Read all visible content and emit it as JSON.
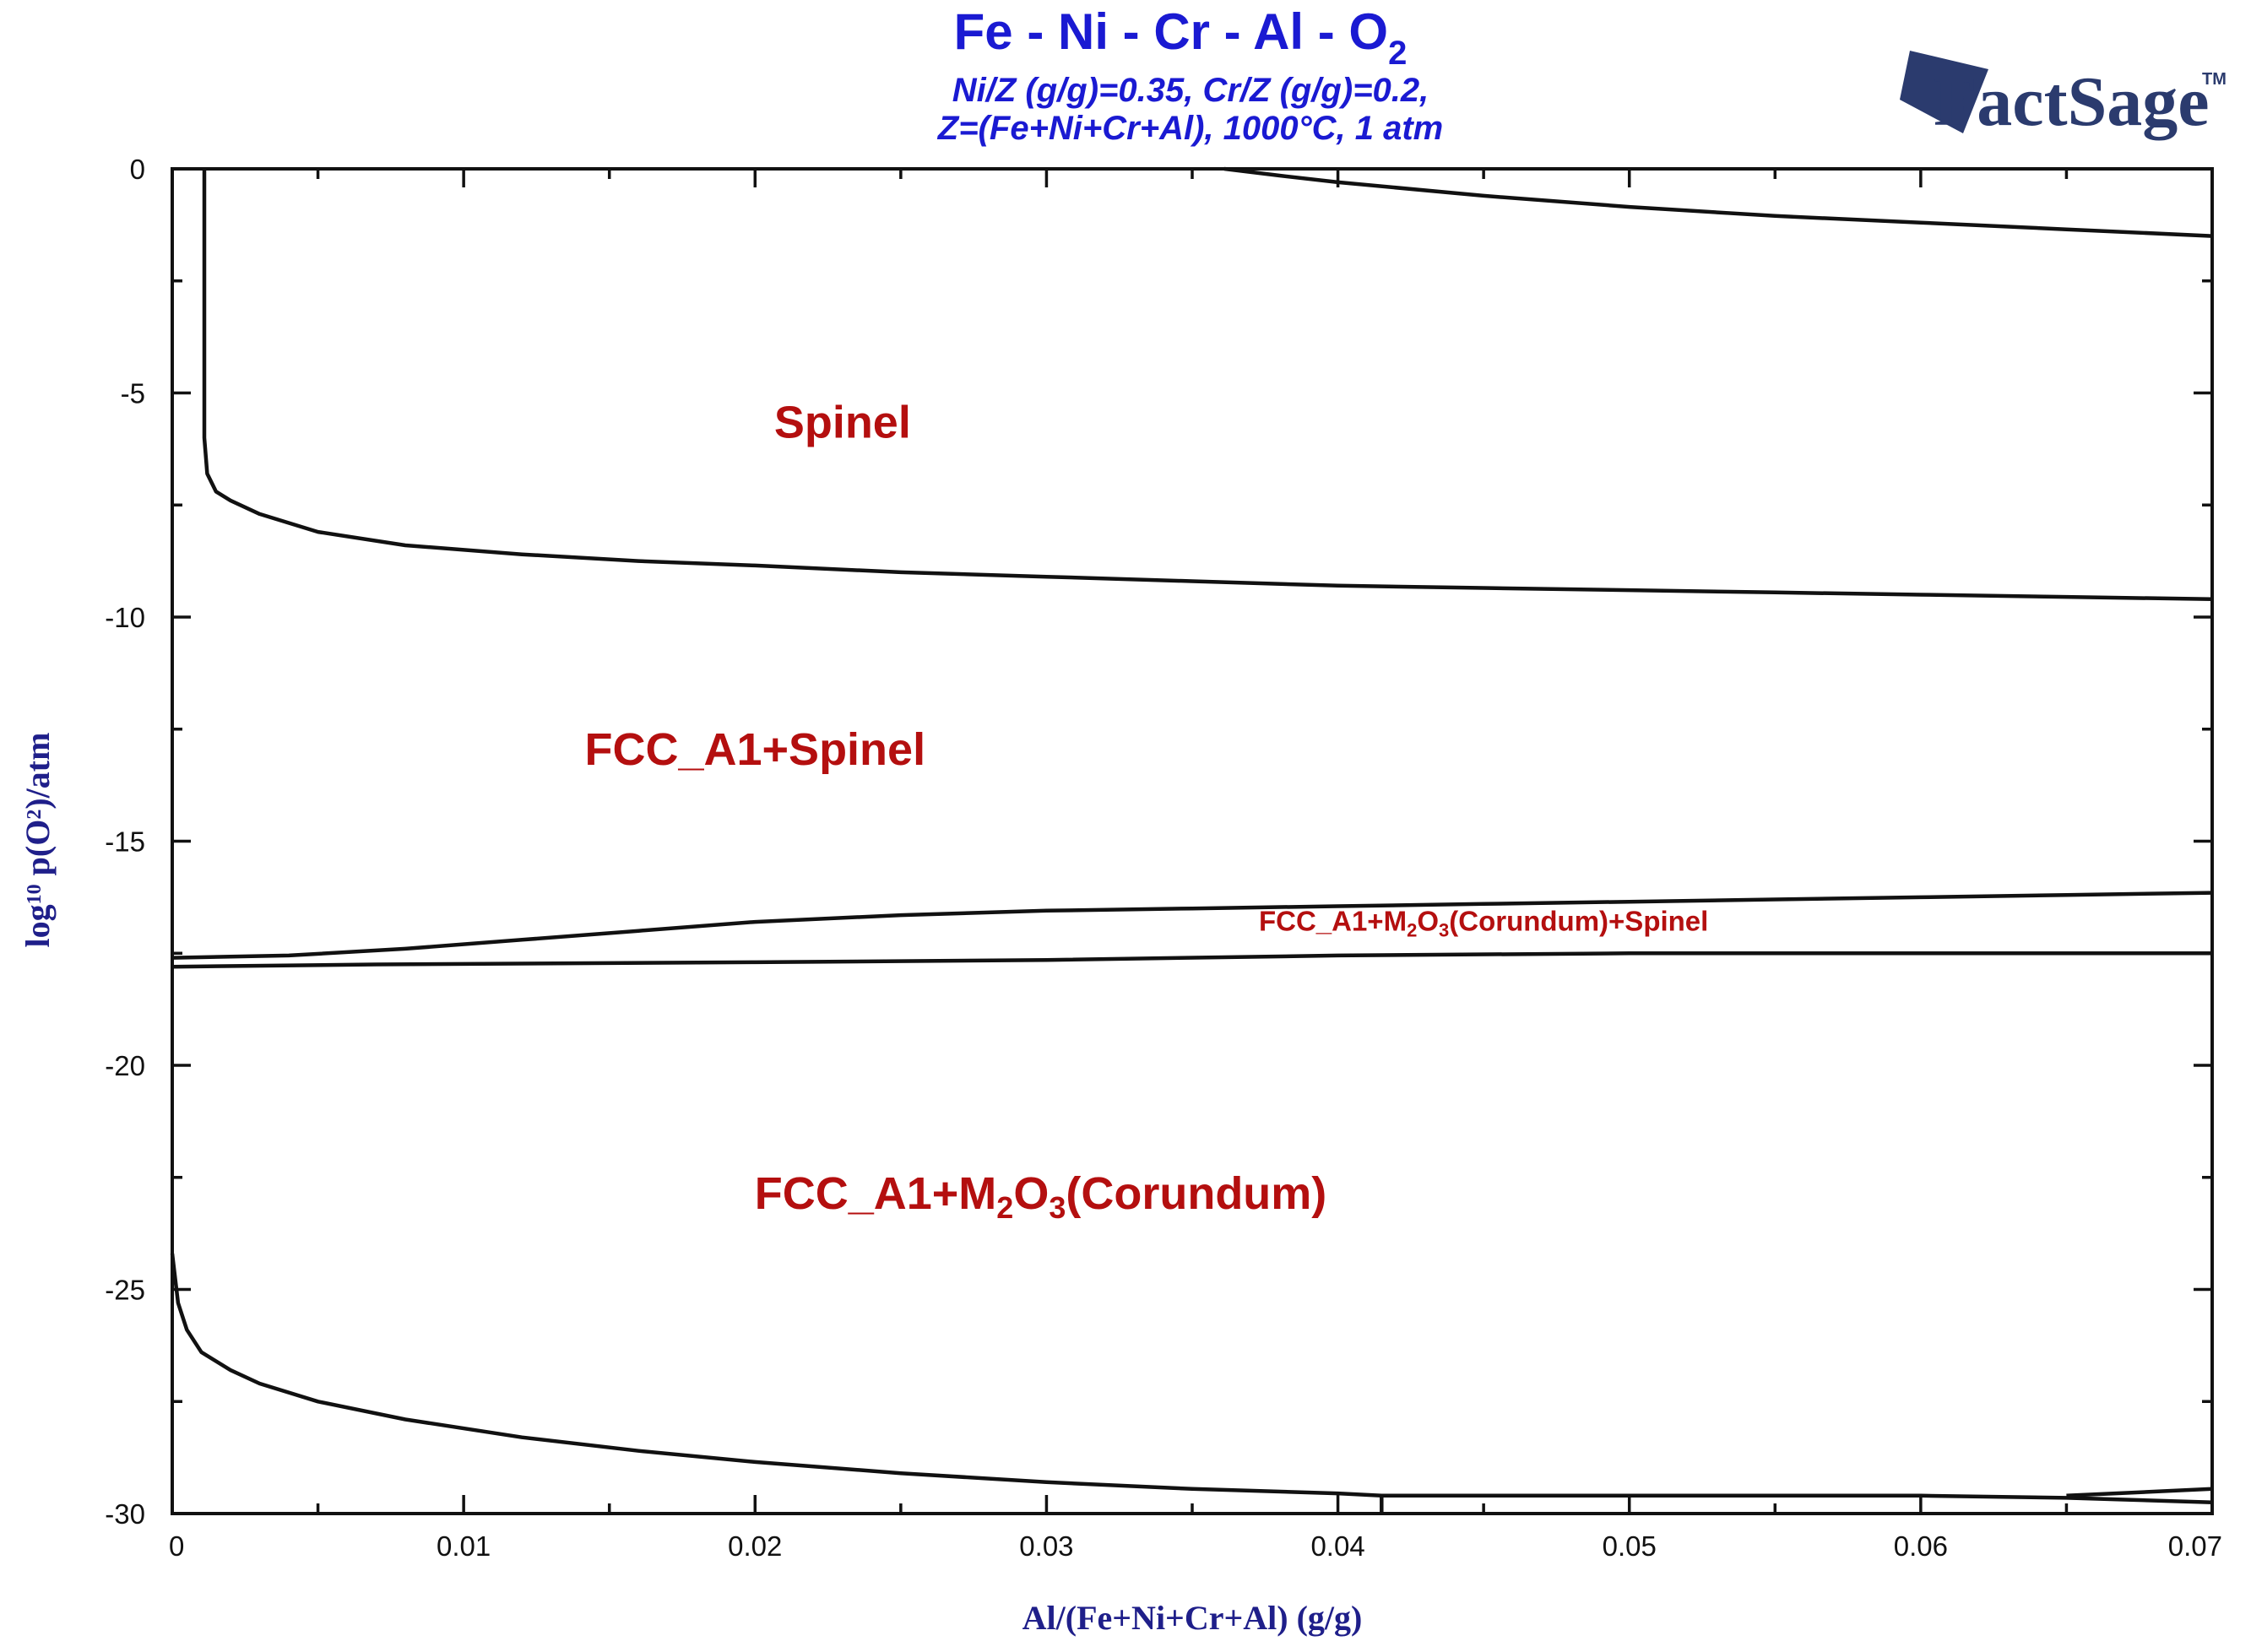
{
  "chart_data": {
    "type": "line",
    "title": "Fe - Ni - Cr - Al - O2",
    "title_main": "Fe - Ni - Cr - Al - O",
    "title_sub": "2",
    "subtitle_line1": "Ni/Z (g/g)=0.35, Cr/Z (g/g)=0.2,",
    "subtitle_line2": "Z=(Fe+Ni+Cr+Al), 1000°C, 1 atm",
    "logo_text": "FactSage",
    "logo_tm": "TM",
    "xlabel": "Al/(Fe+Ni+Cr+Al) (g/g)",
    "ylabel": "log10 p(O2)/atm",
    "xlim": [
      0,
      0.07
    ],
    "ylim": [
      -30,
      0
    ],
    "x_ticks": [
      0,
      0.01,
      0.02,
      0.03,
      0.04,
      0.05,
      0.06,
      0.07
    ],
    "x_tick_labels": [
      "0",
      "0.01",
      "0.02",
      "0.03",
      "0.04",
      "0.05",
      "0.06",
      "0.07"
    ],
    "y_ticks": [
      0,
      -5,
      -10,
      -15,
      -20,
      -25,
      -30
    ],
    "y_tick_labels": [
      "0",
      "-5",
      "-10",
      "-15",
      "-20",
      "-25",
      "-30"
    ],
    "region_labels": [
      {
        "id": "spinel",
        "x": 0.023,
        "y": -6.0,
        "parts": [
          {
            "t": "Spinel"
          }
        ]
      },
      {
        "id": "fcc-spinel",
        "x": 0.02,
        "y": -13.3,
        "parts": [
          {
            "t": "FCC_A1+Spinel"
          }
        ]
      },
      {
        "id": "fcc-corundum-spinel",
        "x": 0.045,
        "y": -17.0,
        "parts": [
          {
            "t": "FCC_A1+M"
          },
          {
            "t": "2",
            "sub": true
          },
          {
            "t": "O"
          },
          {
            "t": "3",
            "sub": true
          },
          {
            "t": "(Corundum)+Spinel"
          }
        ]
      },
      {
        "id": "fcc-corundum",
        "x": 0.0298,
        "y": -23.2,
        "parts": [
          {
            "t": "FCC_A1+M"
          },
          {
            "t": "2",
            "sub": true
          },
          {
            "t": "O"
          },
          {
            "t": "3",
            "sub": true
          },
          {
            "t": "(Corundum)"
          }
        ]
      }
    ],
    "series": [
      {
        "name": "upper-boundary",
        "x": [
          0.0361,
          0.038,
          0.04,
          0.045,
          0.05,
          0.055,
          0.06,
          0.065,
          0.07
        ],
        "y": [
          0,
          -0.15,
          -0.3,
          -0.6,
          -0.85,
          -1.05,
          -1.2,
          -1.35,
          -1.5
        ]
      },
      {
        "name": "spinel-lower-boundary",
        "x": [
          0.0011,
          0.0011,
          0.0012,
          0.0015,
          0.002,
          0.003,
          0.005,
          0.008,
          0.012,
          0.016,
          0.02,
          0.025,
          0.03,
          0.035,
          0.04,
          0.045,
          0.05,
          0.055,
          0.06,
          0.065,
          0.07
        ],
        "y": [
          0,
          -6,
          -6.8,
          -7.2,
          -7.4,
          -7.7,
          -8.1,
          -8.4,
          -8.6,
          -8.75,
          -8.85,
          -9.0,
          -9.1,
          -9.2,
          -9.3,
          -9.35,
          -9.4,
          -9.45,
          -9.5,
          -9.55,
          -9.6
        ]
      },
      {
        "name": "fcc-spinel-lower-boundary",
        "x": [
          0,
          0.004,
          0.008,
          0.012,
          0.016,
          0.02,
          0.025,
          0.03,
          0.035,
          0.04,
          0.045,
          0.05,
          0.055,
          0.06,
          0.065,
          0.07
        ],
        "y": [
          -17.6,
          -17.55,
          -17.4,
          -17.2,
          -17.0,
          -16.8,
          -16.65,
          -16.55,
          -16.5,
          -16.45,
          -16.4,
          -16.35,
          -16.3,
          -16.25,
          -16.2,
          -16.15
        ]
      },
      {
        "name": "corundum-spinel-lower-boundary",
        "x": [
          0,
          0.007,
          0.02,
          0.03,
          0.04,
          0.05,
          0.06,
          0.07
        ],
        "y": [
          -17.8,
          -17.75,
          -17.7,
          -17.65,
          -17.55,
          -17.5,
          -17.5,
          -17.5
        ]
      },
      {
        "name": "corundum-lower-boundary",
        "x": [
          0,
          0.0002,
          0.0005,
          0.001,
          0.002,
          0.003,
          0.005,
          0.008,
          0.012,
          0.016,
          0.02,
          0.025,
          0.03,
          0.035,
          0.04,
          0.0415,
          0.045,
          0.05,
          0.055,
          0.06,
          0.065,
          0.07
        ],
        "y": [
          -24.2,
          -25.3,
          -25.9,
          -26.4,
          -26.8,
          -27.1,
          -27.5,
          -27.9,
          -28.3,
          -28.6,
          -28.85,
          -29.1,
          -29.3,
          -29.45,
          -29.55,
          -29.6,
          -29.6,
          -29.6,
          -29.6,
          -29.6,
          -29.65,
          -29.75
        ]
      },
      {
        "name": "corundum-lower-boundary-branch",
        "x": [
          0.065,
          0.07
        ],
        "y": [
          -29.6,
          -29.45
        ]
      },
      {
        "name": "vertical-marker",
        "x": [
          0.0415,
          0.0415
        ],
        "y": [
          -29.6,
          -30
        ]
      }
    ]
  }
}
